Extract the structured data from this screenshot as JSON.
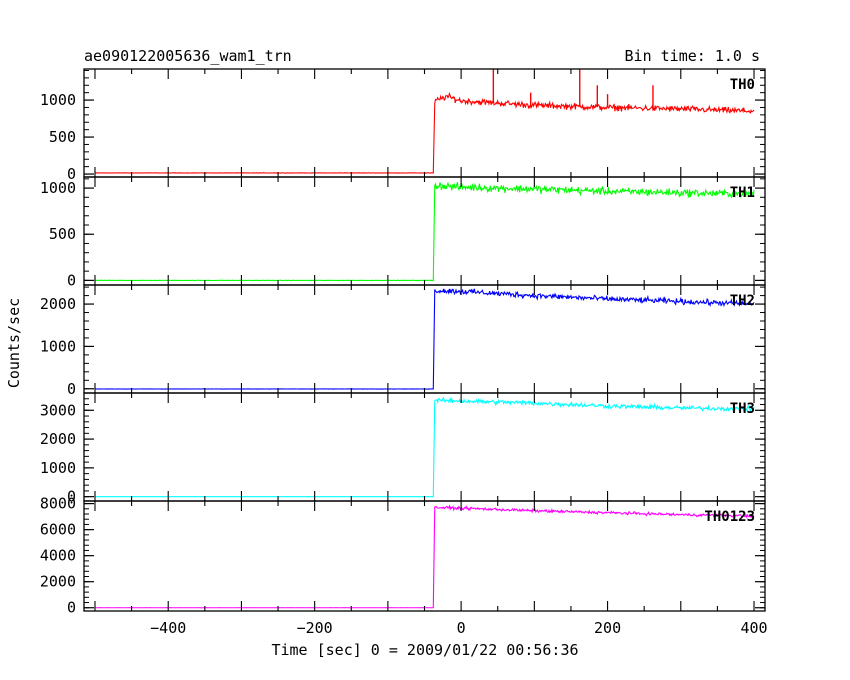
{
  "chart_data": {
    "type": "line",
    "title": "ae090122005636_wam1_trn",
    "bin_time": "Bin time: 1.0 s",
    "xlabel": "Time [sec] 0 = 2009/01/22 00:56:36",
    "ylabel": "Counts/sec",
    "xlim": [
      -515,
      415
    ],
    "x_ticks": [
      -400,
      -200,
      0,
      200,
      400
    ],
    "x_tick_labels": [
      "−400",
      "−200",
      "0",
      "200",
      "400"
    ],
    "x_range_data": [
      -500,
      400
    ],
    "onset_time": -38,
    "panels": [
      {
        "name": "TH0",
        "color": "#ff0000",
        "ylim": [
          -40,
          1420
        ],
        "y_ticks": [
          0,
          500,
          1000
        ],
        "y_tick_labels": [
          "0",
          "500",
          "1000"
        ],
        "baseline": 15,
        "profile": [
          [
            -38,
            15
          ],
          [
            -36,
            980
          ],
          [
            -20,
            1050
          ],
          [
            0,
            990
          ],
          [
            100,
            930
          ],
          [
            200,
            900
          ],
          [
            300,
            880
          ],
          [
            400,
            850
          ]
        ],
        "noise": 35,
        "spikes": [
          [
            44,
            1420
          ],
          [
            162,
            1420
          ],
          [
            95,
            1100
          ],
          [
            186,
            1200
          ],
          [
            200,
            1080
          ],
          [
            262,
            1200
          ]
        ]
      },
      {
        "name": "TH1",
        "color": "#00ff00",
        "ylim": [
          -50,
          1120
        ],
        "y_ticks": [
          0,
          500,
          1000
        ],
        "y_tick_labels": [
          "0",
          "500",
          "1000"
        ],
        "baseline": 0,
        "profile": [
          [
            -38,
            0
          ],
          [
            -36,
            1030
          ],
          [
            0,
            1010
          ],
          [
            100,
            990
          ],
          [
            200,
            965
          ],
          [
            300,
            950
          ],
          [
            400,
            935
          ]
        ],
        "noise": 35,
        "spikes": []
      },
      {
        "name": "TH2",
        "color": "#0000ff",
        "ylim": [
          -100,
          2450
        ],
        "y_ticks": [
          0,
          1000,
          2000
        ],
        "y_tick_labels": [
          "0",
          "1000",
          "2000"
        ],
        "baseline": -5,
        "profile": [
          [
            -38,
            -5
          ],
          [
            -36,
            2320
          ],
          [
            0,
            2300
          ],
          [
            100,
            2200
          ],
          [
            200,
            2120
          ],
          [
            300,
            2060
          ],
          [
            400,
            2000
          ]
        ],
        "noise": 55,
        "spikes": []
      },
      {
        "name": "TH3",
        "color": "#00ffff",
        "ylim": [
          -150,
          3600
        ],
        "y_ticks": [
          0,
          1000,
          2000,
          3000
        ],
        "y_tick_labels": [
          "0",
          "1000",
          "2000",
          "3000"
        ],
        "baseline": 0,
        "profile": [
          [
            -38,
            0
          ],
          [
            -36,
            3350
          ],
          [
            0,
            3320
          ],
          [
            100,
            3250
          ],
          [
            200,
            3150
          ],
          [
            300,
            3080
          ],
          [
            400,
            3050
          ]
        ],
        "noise": 65,
        "spikes": []
      },
      {
        "name": "TH0123",
        "color": "#ff00ff",
        "ylim": [
          -250,
          8200
        ],
        "y_ticks": [
          0,
          2000,
          4000,
          6000,
          8000
        ],
        "y_tick_labels": [
          "0",
          "2000",
          "4000",
          "6000",
          "8000"
        ],
        "baseline": 0,
        "profile": [
          [
            -38,
            0
          ],
          [
            -36,
            7700
          ],
          [
            0,
            7650
          ],
          [
            100,
            7450
          ],
          [
            200,
            7300
          ],
          [
            300,
            7150
          ],
          [
            400,
            7050
          ]
        ],
        "noise": 90,
        "spikes": []
      }
    ]
  }
}
